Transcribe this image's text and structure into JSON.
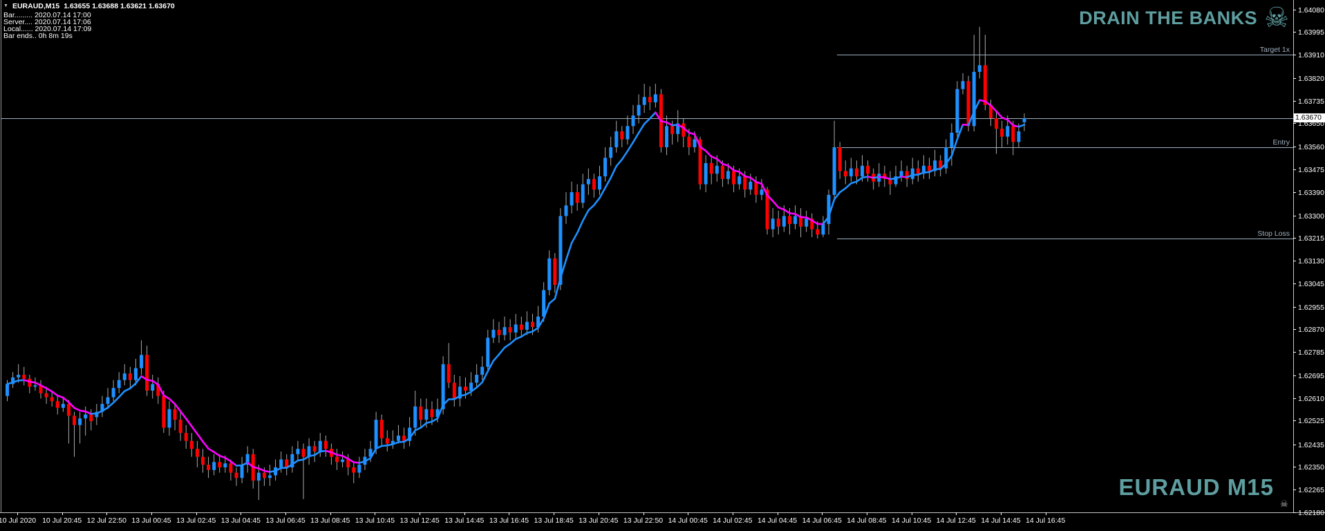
{
  "info_panel": {
    "collapse_icon": "triangle-down",
    "symbol": "EURAUD,M15",
    "ohlc_values": "1.63655  1.63688  1.63621  1.63670",
    "rows": [
      {
        "label": "Bar.........",
        "value": "2020.07.14 17:00"
      },
      {
        "label": "Server....",
        "value": "2020.07.14 17:06"
      },
      {
        "label": "Local......",
        "value": "2020.07.14 17:09"
      },
      {
        "label": "Bar ends..",
        "value": "0h 8m 19s"
      }
    ]
  },
  "watermark": {
    "title": "DRAIN THE BANKS",
    "skull_glyph": "☠",
    "symbol_label": "EURAUD M15",
    "color": "#5F9EA0"
  },
  "chart_data": {
    "type": "candlestick",
    "symbol": "EURAUD",
    "timeframe": "M15",
    "grid": "off",
    "background": "#000000",
    "up_color": "#1E90FF",
    "down_color": "#FF0000",
    "wick_color": "#ABABAB",
    "line_color": "#9FB1C1",
    "ylim": [
      1.6218,
      1.6408
    ],
    "y_ticks": [
      "1.64080",
      "1.63995",
      "1.63910",
      "1.63820",
      "1.63735",
      "1.63650",
      "1.63560",
      "1.63475",
      "1.63390",
      "1.63300",
      "1.63215",
      "1.63130",
      "1.63045",
      "1.62955",
      "1.62870",
      "1.62785",
      "1.62695",
      "1.62610",
      "1.62525",
      "1.62435",
      "1.62350",
      "1.62265",
      "1.62180"
    ],
    "x_tick_labels": [
      "10 Jul 2020",
      "10 Jul 20:45",
      "12 Jul 22:50",
      "13 Jul 00:45",
      "13 Jul 02:45",
      "13 Jul 04:45",
      "13 Jul 06:45",
      "13 Jul 08:45",
      "13 Jul 10:45",
      "13 Jul 12:45",
      "13 Jul 14:45",
      "13 Jul 16:45",
      "13 Jul 18:45",
      "13 Jul 20:45",
      "13 Jul 22:50",
      "14 Jul 00:45",
      "14 Jul 02:45",
      "14 Jul 04:45",
      "14 Jul 06:45",
      "14 Jul 08:45",
      "14 Jul 10:45",
      "14 Jul 12:45",
      "14 Jul 14:45",
      "14 Jul 16:45"
    ],
    "bars_per_x_tick": 8,
    "ma": {
      "name": "trend-color-ma",
      "up_color": "#1E90FF",
      "down_color": "#FF00FF"
    },
    "annotations": [
      {
        "id": "target",
        "label": "Target 1x",
        "price": 1.6391,
        "full_width": false
      },
      {
        "id": "entry",
        "label": "Entry",
        "price": 1.6356,
        "full_width": false
      },
      {
        "id": "stop",
        "label": "Stop Loss",
        "price": 1.63215,
        "full_width": false
      },
      {
        "id": "current",
        "label": "1.63670",
        "price": 1.6367,
        "full_width": true
      }
    ],
    "ohlc_format": [
      "open",
      "high",
      "low",
      "close"
    ],
    "candles": [
      [
        1.6262,
        1.6268,
        1.626,
        1.62665
      ],
      [
        1.62665,
        1.6271,
        1.6265,
        1.6269
      ],
      [
        1.6269,
        1.6274,
        1.6267,
        1.627
      ],
      [
        1.627,
        1.6273,
        1.6266,
        1.62685
      ],
      [
        1.62685,
        1.627,
        1.6263,
        1.62655
      ],
      [
        1.62655,
        1.6269,
        1.6264,
        1.6266
      ],
      [
        1.6266,
        1.6268,
        1.6261,
        1.6263
      ],
      [
        1.6263,
        1.62655,
        1.6259,
        1.62615
      ],
      [
        1.62615,
        1.6264,
        1.6258,
        1.626
      ],
      [
        1.626,
        1.6262,
        1.6255,
        1.62575
      ],
      [
        1.62575,
        1.62615,
        1.6256,
        1.6259
      ],
      [
        1.6259,
        1.62605,
        1.6244,
        1.62545
      ],
      [
        1.62545,
        1.6256,
        1.6239,
        1.6251
      ],
      [
        1.6251,
        1.6256,
        1.6244,
        1.62535
      ],
      [
        1.62535,
        1.6258,
        1.6247,
        1.6255
      ],
      [
        1.6255,
        1.6257,
        1.6249,
        1.62525
      ],
      [
        1.6254,
        1.6259,
        1.6251,
        1.6256
      ],
      [
        1.6256,
        1.6262,
        1.6254,
        1.6259
      ],
      [
        1.6259,
        1.6265,
        1.6257,
        1.62615
      ],
      [
        1.62615,
        1.6268,
        1.626,
        1.6265
      ],
      [
        1.6265,
        1.6271,
        1.6263,
        1.6268
      ],
      [
        1.6268,
        1.6274,
        1.6266,
        1.62705
      ],
      [
        1.62705,
        1.6273,
        1.6265,
        1.6268
      ],
      [
        1.6268,
        1.6276,
        1.6266,
        1.62725
      ],
      [
        1.62725,
        1.6283,
        1.627,
        1.62775
      ],
      [
        1.62775,
        1.6281,
        1.6262,
        1.6264
      ],
      [
        1.6264,
        1.627,
        1.6261,
        1.62665
      ],
      [
        1.62665,
        1.6269,
        1.6259,
        1.6262
      ],
      [
        1.6262,
        1.6264,
        1.6248,
        1.625
      ],
      [
        1.625,
        1.626,
        1.6247,
        1.6257
      ],
      [
        1.6257,
        1.6259,
        1.6249,
        1.6253
      ],
      [
        1.6253,
        1.6256,
        1.6245,
        1.6248
      ],
      [
        1.6248,
        1.6251,
        1.6242,
        1.6245
      ],
      [
        1.6245,
        1.6248,
        1.6239,
        1.6242
      ],
      [
        1.6242,
        1.6245,
        1.6235,
        1.6239
      ],
      [
        1.6239,
        1.6242,
        1.6233,
        1.6236
      ],
      [
        1.6236,
        1.6239,
        1.6231,
        1.6234
      ],
      [
        1.6234,
        1.624,
        1.6232,
        1.6237
      ],
      [
        1.6237,
        1.624,
        1.6233,
        1.6235
      ],
      [
        1.6235,
        1.62395,
        1.6233,
        1.62365
      ],
      [
        1.62365,
        1.6238,
        1.623,
        1.6233
      ],
      [
        1.6233,
        1.6235,
        1.6228,
        1.6231
      ],
      [
        1.6231,
        1.6239,
        1.6229,
        1.6236
      ],
      [
        1.6236,
        1.6243,
        1.6233,
        1.624
      ],
      [
        1.624,
        1.6242,
        1.6227,
        1.623
      ],
      [
        1.623,
        1.6236,
        1.62227,
        1.6233
      ],
      [
        1.6233,
        1.6235,
        1.6228,
        1.6231
      ],
      [
        1.6231,
        1.6236,
        1.6228,
        1.6232
      ],
      [
        1.6232,
        1.6238,
        1.623,
        1.6235
      ],
      [
        1.6235,
        1.6241,
        1.6233,
        1.6238
      ],
      [
        1.6238,
        1.624,
        1.6232,
        1.6235
      ],
      [
        1.6235,
        1.6243,
        1.6233,
        1.624
      ],
      [
        1.624,
        1.6245,
        1.6238,
        1.6242
      ],
      [
        1.6242,
        1.6244,
        1.6223,
        1.6239
      ],
      [
        1.6239,
        1.6246,
        1.6236,
        1.6243
      ],
      [
        1.6243,
        1.6245,
        1.6237,
        1.6241
      ],
      [
        1.6241,
        1.6248,
        1.6239,
        1.6245
      ],
      [
        1.6245,
        1.6247,
        1.6239,
        1.6242
      ],
      [
        1.6242,
        1.6244,
        1.6236,
        1.6239
      ],
      [
        1.6239,
        1.6242,
        1.6234,
        1.6237
      ],
      [
        1.6237,
        1.6241,
        1.6235,
        1.6238
      ],
      [
        1.6238,
        1.624,
        1.6232,
        1.6235
      ],
      [
        1.6235,
        1.6237,
        1.6229,
        1.6233
      ],
      [
        1.6233,
        1.6239,
        1.6231,
        1.6236
      ],
      [
        1.6236,
        1.6242,
        1.6234,
        1.6239
      ],
      [
        1.6239,
        1.6245,
        1.6237,
        1.6242
      ],
      [
        1.6242,
        1.6256,
        1.624,
        1.6253
      ],
      [
        1.6253,
        1.6255,
        1.6243,
        1.6246
      ],
      [
        1.6246,
        1.6249,
        1.6241,
        1.6244
      ],
      [
        1.6244,
        1.6249,
        1.6242,
        1.6245
      ],
      [
        1.6245,
        1.6251,
        1.6244,
        1.6247
      ],
      [
        1.6247,
        1.625,
        1.6242,
        1.6245
      ],
      [
        1.6245,
        1.6254,
        1.6243,
        1.625
      ],
      [
        1.625,
        1.6264,
        1.6247,
        1.6258
      ],
      [
        1.6258,
        1.6261,
        1.625,
        1.6253
      ],
      [
        1.6253,
        1.6261,
        1.625,
        1.6257
      ],
      [
        1.6257,
        1.626,
        1.6251,
        1.6254
      ],
      [
        1.6254,
        1.6261,
        1.6252,
        1.6257
      ],
      [
        1.6257,
        1.6277,
        1.6255,
        1.6274
      ],
      [
        1.6274,
        1.6282,
        1.6265,
        1.6267
      ],
      [
        1.6267,
        1.627,
        1.6258,
        1.6261
      ],
      [
        1.6261,
        1.62695,
        1.6258,
        1.62655
      ],
      [
        1.62655,
        1.6269,
        1.6261,
        1.6264
      ],
      [
        1.6264,
        1.6271,
        1.6262,
        1.6267
      ],
      [
        1.6267,
        1.6274,
        1.6265,
        1.627
      ],
      [
        1.627,
        1.6277,
        1.6268,
        1.6273
      ],
      [
        1.6273,
        1.6287,
        1.6271,
        1.6284
      ],
      [
        1.6284,
        1.6291,
        1.6282,
        1.6287
      ],
      [
        1.6287,
        1.629,
        1.6282,
        1.6285
      ],
      [
        1.6285,
        1.6292,
        1.6283,
        1.6288
      ],
      [
        1.6288,
        1.6291,
        1.6283,
        1.6286
      ],
      [
        1.6286,
        1.6293,
        1.6284,
        1.6289
      ],
      [
        1.6289,
        1.6292,
        1.6284,
        1.6287
      ],
      [
        1.6287,
        1.6294,
        1.6285,
        1.629
      ],
      [
        1.629,
        1.6293,
        1.6285,
        1.6288
      ],
      [
        1.6288,
        1.6296,
        1.6286,
        1.6292
      ],
      [
        1.6292,
        1.6305,
        1.629,
        1.6302
      ],
      [
        1.6302,
        1.6317,
        1.63,
        1.6314
      ],
      [
        1.6314,
        1.6316,
        1.6301,
        1.6304
      ],
      [
        1.6304,
        1.6333,
        1.6302,
        1.633
      ],
      [
        1.633,
        1.6339,
        1.6327,
        1.6334
      ],
      [
        1.6334,
        1.6343,
        1.6331,
        1.6339
      ],
      [
        1.6339,
        1.6342,
        1.6332,
        1.6335
      ],
      [
        1.6335,
        1.6346,
        1.6333,
        1.6342
      ],
      [
        1.6342,
        1.6348,
        1.6338,
        1.6344
      ],
      [
        1.6344,
        1.6346,
        1.6337,
        1.634
      ],
      [
        1.634,
        1.6349,
        1.6338,
        1.6345
      ],
      [
        1.6345,
        1.6356,
        1.6343,
        1.6352
      ],
      [
        1.6352,
        1.636,
        1.6349,
        1.6356
      ],
      [
        1.6356,
        1.6366,
        1.6354,
        1.6362
      ],
      [
        1.6362,
        1.6364,
        1.6356,
        1.6359
      ],
      [
        1.6359,
        1.6368,
        1.6357,
        1.6364
      ],
      [
        1.6364,
        1.6372,
        1.6361,
        1.6368
      ],
      [
        1.6368,
        1.6376,
        1.6365,
        1.6372
      ],
      [
        1.6372,
        1.638,
        1.6369,
        1.6375
      ],
      [
        1.6375,
        1.6379,
        1.637,
        1.6373
      ],
      [
        1.6373,
        1.638,
        1.6371,
        1.6376
      ],
      [
        1.6376,
        1.6378,
        1.6354,
        1.6356
      ],
      [
        1.6356,
        1.6368,
        1.6353,
        1.6364
      ],
      [
        1.6364,
        1.6366,
        1.6357,
        1.6361
      ],
      [
        1.6361,
        1.637,
        1.6358,
        1.6365
      ],
      [
        1.6365,
        1.6367,
        1.6356,
        1.636
      ],
      [
        1.636,
        1.6363,
        1.6353,
        1.6356
      ],
      [
        1.6356,
        1.6362,
        1.6354,
        1.6359
      ],
      [
        1.6359,
        1.636,
        1.634,
        1.6342
      ],
      [
        1.6342,
        1.6353,
        1.6339,
        1.635
      ],
      [
        1.635,
        1.6352,
        1.6342,
        1.6346
      ],
      [
        1.6346,
        1.6353,
        1.6343,
        1.6349
      ],
      [
        1.6349,
        1.6351,
        1.6341,
        1.6344
      ],
      [
        1.6344,
        1.635,
        1.6342,
        1.6347
      ],
      [
        1.6347,
        1.6349,
        1.6339,
        1.6342
      ],
      [
        1.6342,
        1.6348,
        1.634,
        1.6345
      ],
      [
        1.6345,
        1.6347,
        1.6337,
        1.634
      ],
      [
        1.634,
        1.6346,
        1.6338,
        1.6343
      ],
      [
        1.6343,
        1.6345,
        1.6335,
        1.6338
      ],
      [
        1.6338,
        1.6344,
        1.6336,
        1.634
      ],
      [
        1.634,
        1.6341,
        1.6323,
        1.6325
      ],
      [
        1.6325,
        1.6333,
        1.6322,
        1.6329
      ],
      [
        1.6329,
        1.6332,
        1.6323,
        1.6326
      ],
      [
        1.6326,
        1.6334,
        1.6324,
        1.633
      ],
      [
        1.633,
        1.6333,
        1.6323,
        1.6327
      ],
      [
        1.6327,
        1.6334,
        1.6325,
        1.633
      ],
      [
        1.633,
        1.6333,
        1.6322,
        1.6326
      ],
      [
        1.6326,
        1.6332,
        1.6324,
        1.6329
      ],
      [
        1.6329,
        1.6331,
        1.6322,
        1.6325
      ],
      [
        1.6325,
        1.6328,
        1.63215,
        1.6323
      ],
      [
        1.6323,
        1.633,
        1.6322,
        1.6327
      ],
      [
        1.6327,
        1.634,
        1.6323,
        1.6338
      ],
      [
        1.6338,
        1.6366,
        1.6336,
        1.6356
      ],
      [
        1.6356,
        1.6358,
        1.6344,
        1.6347
      ],
      [
        1.6347,
        1.6351,
        1.6342,
        1.6345
      ],
      [
        1.6345,
        1.6352,
        1.6343,
        1.6348
      ],
      [
        1.6348,
        1.6351,
        1.6342,
        1.6345
      ],
      [
        1.6345,
        1.6353,
        1.6343,
        1.6349
      ],
      [
        1.6349,
        1.6351,
        1.6343,
        1.6346
      ],
      [
        1.6346,
        1.6348,
        1.634,
        1.6343
      ],
      [
        1.6343,
        1.635,
        1.6341,
        1.6346
      ],
      [
        1.6346,
        1.6349,
        1.6341,
        1.6344
      ],
      [
        1.6344,
        1.6347,
        1.6338,
        1.6342
      ],
      [
        1.6342,
        1.6349,
        1.6341,
        1.6345
      ],
      [
        1.6345,
        1.6351,
        1.6343,
        1.6347
      ],
      [
        1.6347,
        1.6349,
        1.6341,
        1.6344
      ],
      [
        1.6344,
        1.6352,
        1.6342,
        1.6348
      ],
      [
        1.6348,
        1.6351,
        1.6343,
        1.6346
      ],
      [
        1.6346,
        1.6353,
        1.6344,
        1.6349
      ],
      [
        1.6349,
        1.6352,
        1.6344,
        1.6347
      ],
      [
        1.6347,
        1.6355,
        1.6345,
        1.6351
      ],
      [
        1.6351,
        1.6353,
        1.6345,
        1.6348
      ],
      [
        1.6348,
        1.6359,
        1.6346,
        1.6356
      ],
      [
        1.6356,
        1.6365,
        1.6349,
        1.63615
      ],
      [
        1.63615,
        1.6381,
        1.636,
        1.6378
      ],
      [
        1.6378,
        1.6384,
        1.6376,
        1.6381
      ],
      [
        1.6381,
        1.6383,
        1.6362,
        1.6364
      ],
      [
        1.6364,
        1.63985,
        1.6362,
        1.63845
      ],
      [
        1.63845,
        1.64015,
        1.6382,
        1.6387
      ],
      [
        1.6387,
        1.63985,
        1.637,
        1.6372
      ],
      [
        1.6372,
        1.6374,
        1.6364,
        1.6367
      ],
      [
        1.6367,
        1.637,
        1.63535,
        1.6363
      ],
      [
        1.6363,
        1.6366,
        1.6356,
        1.636
      ],
      [
        1.636,
        1.6368,
        1.6357,
        1.6364
      ],
      [
        1.6364,
        1.6366,
        1.6353,
        1.6358
      ],
      [
        1.6358,
        1.6365,
        1.6356,
        1.6362
      ],
      [
        1.63655,
        1.63688,
        1.63621,
        1.6367
      ]
    ]
  }
}
